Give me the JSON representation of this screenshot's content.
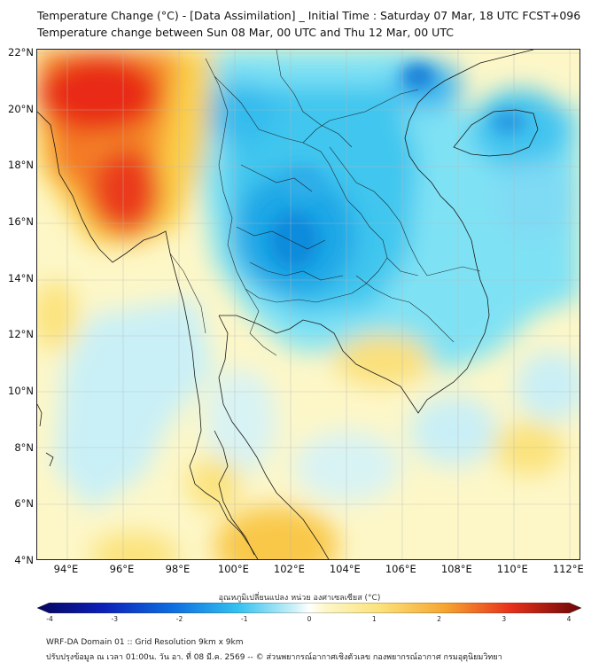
{
  "header": {
    "title_line1": "Temperature Change (°C) - [Data Assimilation] _ Initial Time : Saturday 07 Mar, 18 UTC FCST+096",
    "title_line2": "Temperature change between Sun 08 Mar, 00 UTC and Thu 12 Mar, 00 UTC"
  },
  "map": {
    "lat_labels": [
      "22°N",
      "20°N",
      "18°N",
      "16°N",
      "14°N",
      "12°N",
      "10°N",
      "8°N",
      "6°N",
      "4°N"
    ],
    "lon_labels": [
      "94°E",
      "96°E",
      "98°E",
      "100°E",
      "102°E",
      "104°E",
      "106°E",
      "108°E",
      "110°E",
      "112°E"
    ],
    "lat_range": [
      4,
      22
    ],
    "lon_range": [
      93,
      112.5
    ]
  },
  "colorbar": {
    "title": "อุณหภูมิเปลี่ยนแปลง หน่วย องศาเซลเซียส (°C)",
    "ticks": [
      "-4",
      "-3",
      "-2",
      "-1",
      "0",
      "1",
      "2",
      "3",
      "4"
    ],
    "range": [
      -4,
      4
    ]
  },
  "footer": {
    "line1": "WRF-DA Domain 01 :: Grid Resolution 9km x 9km",
    "line2": "ปรับปรุงข้อมูล ณ เวลา 01:00น. วัน อา. ที่ 08 มี.ค. 2569 -- © ส่วนพยากรณ์อากาศเชิงตัวเลข กองพยากรณ์อากาศ กรมอุตุนิยมวิทยา"
  }
}
